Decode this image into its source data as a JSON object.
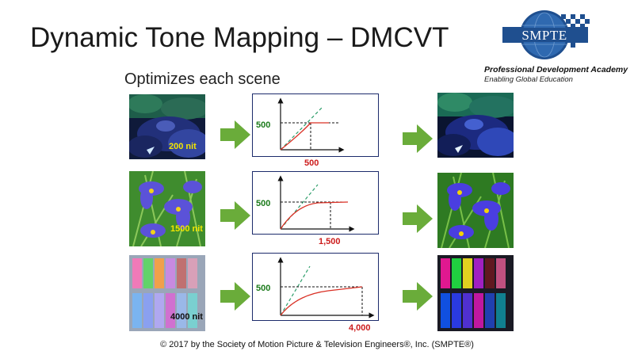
{
  "slide": {
    "title": "Dynamic Tone Mapping – DMCVT",
    "subtitle": "Optimizes each scene",
    "logo_text": "SMPTE",
    "org_line1": "Professional Development Academy",
    "org_line2": "Enabling Global Education",
    "footer": "© 2017 by the Society of Motion Picture & Television Engineers®, Inc. (SMPTE®)"
  },
  "rows": [
    {
      "scene": "underwater",
      "source_label": "200 nit",
      "y_axis_label": "500",
      "x_axis_label": "500"
    },
    {
      "scene": "flowers",
      "source_label": "1500 nit",
      "y_axis_label": "500",
      "x_axis_label": "1,500"
    },
    {
      "scene": "pastels",
      "source_label": "4000 nit",
      "y_axis_label": "500",
      "x_axis_label": "4,000"
    }
  ],
  "colors": {
    "arrow_green": "#6aac3a",
    "graph_border": "#1c2b6b",
    "curve_red": "#d93025",
    "dashed_green": "#2e9e6b",
    "label_green": "#1a7a1a",
    "label_red": "#cc1b1b"
  },
  "icons": [
    "right-arrow-icon",
    "smpte-logo"
  ]
}
